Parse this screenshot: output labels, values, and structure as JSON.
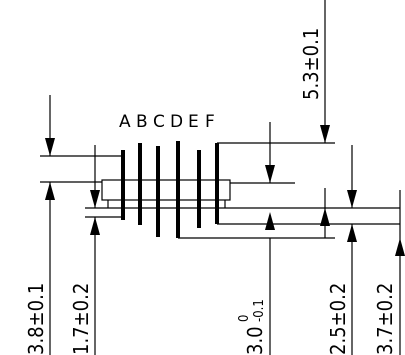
{
  "pin_labels": [
    "A",
    "B",
    "C",
    "D",
    "E",
    "F"
  ],
  "dimensions": {
    "d1": "3.8±0.1",
    "d2": "1.7±0.2",
    "d3_main": "3.0",
    "d3_upper": "0",
    "d3_lower": "-0.1",
    "d4": "2.5±0.2",
    "d5": "3.7±0.2",
    "d6": "5.3±0.1"
  }
}
